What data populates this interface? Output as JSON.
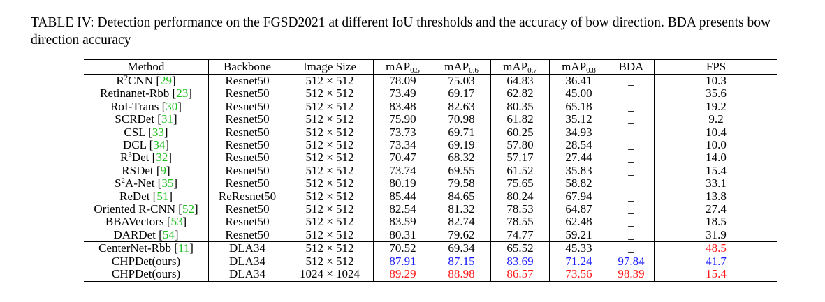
{
  "caption": "TABLE IV: Detection performance on the FGSD2021 at different IoU thresholds and the accuracy of bow direction. BDA presents bow direction accuracy",
  "headers": {
    "method": "Method",
    "backbone": "Backbone",
    "image_size": "Image Size",
    "map_base": "mAP",
    "map_subs": [
      "0.5",
      "0.6",
      "0.7",
      "0.8"
    ],
    "bda": "BDA",
    "fps": "FPS"
  },
  "colors": {
    "ref": "#1fbf1f",
    "best": "#ff1a1a",
    "second": "#1a1aff"
  },
  "rows": [
    {
      "m_pre": "R",
      "m_sup": "2",
      "m_post": "CNN",
      "ref": "29",
      "backbone": "Resnet50",
      "size": "512 × 512",
      "m05": "78.09",
      "m06": "75.03",
      "m07": "64.83",
      "m08": "36.41",
      "bda": "_",
      "fps": "10.3"
    },
    {
      "m_pre": "Retinanet-Rbb",
      "ref": "23",
      "backbone": "Resnet50",
      "size": "512 × 512",
      "m05": "73.49",
      "m06": "69.17",
      "m07": "62.82",
      "m08": "45.00",
      "bda": "_",
      "fps": "35.6"
    },
    {
      "m_pre": "RoI-Trans",
      "ref": "30",
      "backbone": "Resnet50",
      "size": "512 × 512",
      "m05": "83.48",
      "m06": "82.63",
      "m07": "80.35",
      "m08": "65.18",
      "bda": "_",
      "fps": "19.2"
    },
    {
      "m_pre": "SCRDet",
      "ref": "31",
      "backbone": "Resnet50",
      "size": "512 × 512",
      "m05": "75.90",
      "m06": "70.98",
      "m07": "61.82",
      "m08": "35.12",
      "bda": "_",
      "fps": "9.2"
    },
    {
      "m_pre": "CSL",
      "ref": "33",
      "backbone": "Resnet50",
      "size": "512 × 512",
      "m05": "73.73",
      "m06": "69.71",
      "m07": "60.25",
      "m08": "34.93",
      "bda": "_",
      "fps": "10.4"
    },
    {
      "m_pre": "DCL",
      "ref": "34",
      "backbone": "Resnet50",
      "size": "512 × 512",
      "m05": "73.34",
      "m06": "69.19",
      "m07": "57.80",
      "m08": "28.54",
      "bda": "_",
      "fps": "10.0"
    },
    {
      "m_pre": "R",
      "m_sup": "3",
      "m_post": "Det",
      "ref": "32",
      "backbone": "Resnet50",
      "size": "512 × 512",
      "m05": "70.47",
      "m06": "68.32",
      "m07": "57.17",
      "m08": "27.44",
      "bda": "_",
      "fps": "14.0"
    },
    {
      "m_pre": "RSDet",
      "ref": "9",
      "backbone": "Resnet50",
      "size": "512 × 512",
      "m05": "73.74",
      "m06": "69.55",
      "m07": "61.52",
      "m08": "35.83",
      "bda": "_",
      "fps": "15.4"
    },
    {
      "m_pre": "S",
      "m_sup": "2",
      "m_post": "A-Net",
      "ref": "35",
      "backbone": "Resnet50",
      "size": "512 × 512",
      "m05": "80.19",
      "m06": "79.58",
      "m07": "75.65",
      "m08": "58.82",
      "bda": "_",
      "fps": "33.1"
    },
    {
      "m_pre": "ReDet",
      "ref": "51",
      "backbone": "ReResnet50",
      "size": "512 × 512",
      "m05": "85.44",
      "m06": "84.65",
      "m07": "80.24",
      "m08": "67.94",
      "bda": "_",
      "fps": "13.8"
    },
    {
      "m_pre": "Oriented R-CNN",
      "ref": "52",
      "backbone": "Resnet50",
      "size": "512 × 512",
      "m05": "82.54",
      "m06": "81.32",
      "m07": "78.53",
      "m08": "64.87",
      "bda": "_",
      "fps": "27.4"
    },
    {
      "m_pre": "BBAVectors",
      "ref": "53",
      "backbone": "Resnet50",
      "size": "512 × 512",
      "m05": "83.59",
      "m06": "82.74",
      "m07": "78.55",
      "m08": "62.48",
      "bda": "_",
      "fps": "18.5"
    },
    {
      "m_pre": "DARDet",
      "ref": "54",
      "backbone": "Resnet50",
      "size": "512 × 512",
      "m05": "80.31",
      "m06": "79.62",
      "m07": "74.77",
      "m08": "59.21",
      "bda": "_",
      "fps": "31.9"
    },
    {
      "m_pre": "CenterNet-Rbb",
      "ref": "11",
      "backbone": "DLA34",
      "size": "512 × 512",
      "m05": "70.52",
      "m06": "69.34",
      "m07": "65.52",
      "m08": "45.33",
      "bda": "_",
      "fps": "48.5",
      "fps_color": "red",
      "sep": true
    },
    {
      "m_pre": "CHPDet(ours)",
      "backbone": "DLA34",
      "size": "512 × 512",
      "m05": "87.91",
      "m06": "87.15",
      "m07": "83.69",
      "m08": "71.24",
      "bda": "97.84",
      "fps": "41.7",
      "color": "blue"
    },
    {
      "m_pre": "CHPDet(ours)",
      "backbone": "DLA34",
      "size": "1024 × 1024",
      "m05": "89.29",
      "m06": "88.98",
      "m07": "86.57",
      "m08": "73.56",
      "bda": "98.39",
      "fps": "15.4",
      "color": "red"
    }
  ]
}
